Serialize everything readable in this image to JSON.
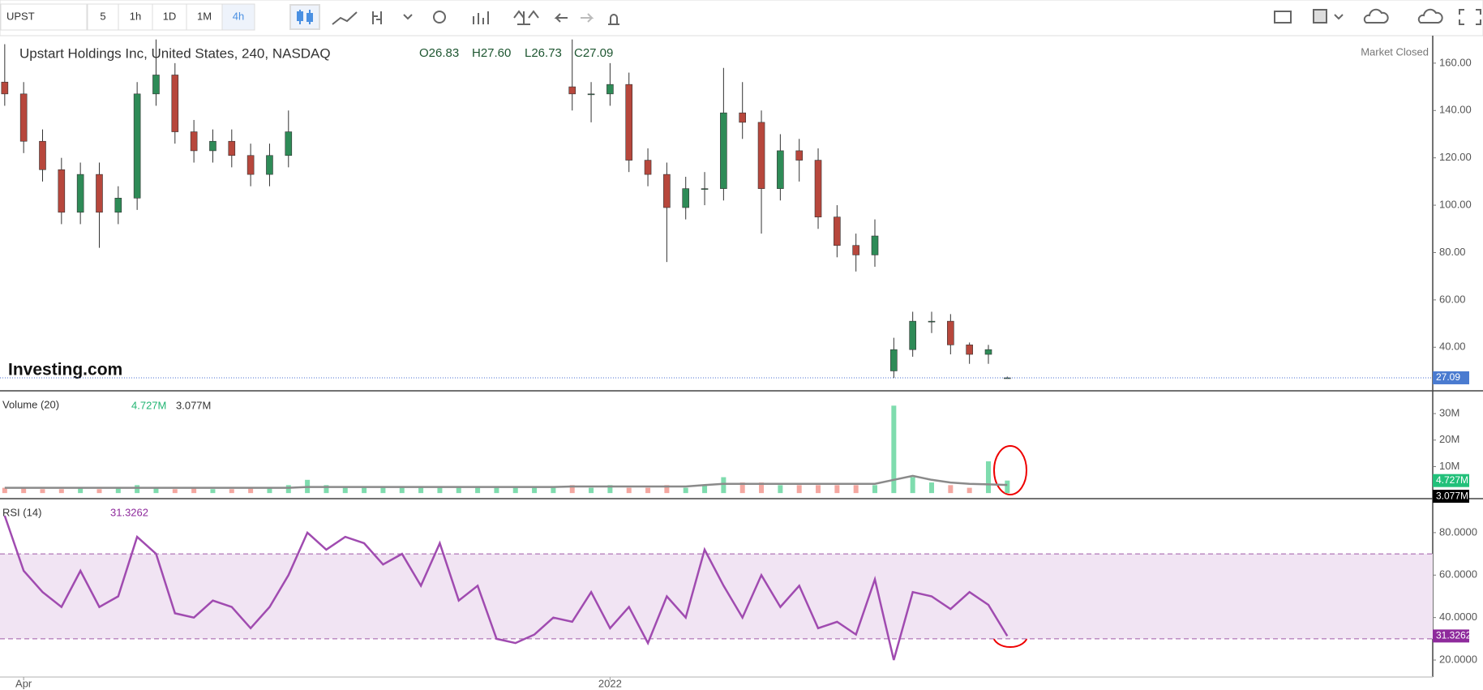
{
  "toolbar": {
    "symbol": "UPST",
    "intervals": [
      "5",
      "1h",
      "1D",
      "1M",
      "4h"
    ]
  },
  "chart_data": [
    {
      "type": "candlestick",
      "title": "Upstart Holdings Inc, United States, 240, NASDAQ",
      "status": "Market Closed",
      "watermark": "Investing.com",
      "ohlc_header": [
        "O26.83",
        "H27.60",
        "L26.73",
        "C27.09"
      ],
      "last_value_label": "27.09",
      "categories": [
        null,
        "Apr",
        null,
        null,
        null,
        null,
        null,
        null,
        null,
        null,
        null,
        null,
        null,
        null,
        null,
        null,
        null,
        null,
        null,
        null,
        null,
        null,
        null,
        null,
        null,
        null,
        null,
        null,
        null,
        null,
        null,
        null,
        "2022",
        null,
        null,
        null,
        null,
        null,
        null,
        null,
        null,
        null,
        null,
        null,
        null,
        null,
        null,
        null,
        null,
        null,
        null,
        null,
        null,
        null
      ],
      "up_color": "#2e8b57",
      "down_color": "#b7473c",
      "open": [
        152,
        147,
        127,
        115,
        97,
        113,
        97,
        103,
        147,
        155,
        131,
        123,
        127,
        121,
        113,
        121,
        null,
        null,
        null,
        null,
        null,
        null,
        null,
        null,
        null,
        null,
        null,
        null,
        null,
        null,
        150,
        147,
        147,
        151,
        119,
        113,
        99,
        107,
        107,
        139,
        135,
        107,
        123,
        119,
        95,
        83,
        79,
        30,
        39,
        51,
        51,
        41,
        37,
        26.83
      ],
      "high": [
        168,
        152,
        132,
        120,
        118,
        118,
        108,
        152,
        170,
        160,
        136,
        132,
        132,
        126,
        126,
        140,
        null,
        null,
        null,
        null,
        null,
        null,
        null,
        null,
        null,
        null,
        null,
        null,
        null,
        null,
        170,
        152,
        160,
        156,
        124,
        118,
        112,
        114,
        158,
        152,
        140,
        130,
        128,
        124,
        100,
        88,
        94,
        44,
        55,
        55,
        54,
        42,
        41,
        27.6
      ],
      "low": [
        142,
        122,
        110,
        92,
        92,
        82,
        92,
        98,
        142,
        126,
        118,
        118,
        116,
        108,
        108,
        116,
        null,
        null,
        null,
        null,
        null,
        null,
        null,
        null,
        null,
        null,
        null,
        null,
        null,
        null,
        140,
        135,
        142,
        114,
        108,
        76,
        94,
        100,
        102,
        128,
        88,
        102,
        110,
        90,
        78,
        72,
        74,
        27,
        36,
        46,
        37,
        33,
        33,
        26.73
      ],
      "close": [
        147,
        127,
        115,
        97,
        113,
        97,
        103,
        147,
        155,
        131,
        123,
        127,
        121,
        113,
        121,
        131,
        null,
        null,
        null,
        null,
        null,
        null,
        null,
        null,
        null,
        null,
        null,
        null,
        null,
        null,
        147,
        147,
        151,
        119,
        113,
        99,
        107,
        107,
        139,
        135,
        107,
        123,
        119,
        95,
        83,
        79,
        87,
        39,
        51,
        51,
        41,
        37,
        39,
        27.09
      ],
      "ylim": [
        21.6,
        171.6
      ],
      "yticks": [
        {
          "value": 40,
          "label": "40.00"
        },
        {
          "value": 60,
          "label": "60.00"
        },
        {
          "value": 80,
          "label": "80.00"
        },
        {
          "value": 100,
          "label": "100.00"
        },
        {
          "value": 120,
          "label": "120.00"
        },
        {
          "value": 140,
          "label": "140.00"
        },
        {
          "value": 160,
          "label": "160.00"
        }
      ]
    },
    {
      "type": "bar",
      "title": "Volume (20)",
      "series": [
        {
          "kind": "bar",
          "up_color": "#7fdcae",
          "down_color": "#f4a7a0",
          "flag_color": "#22c07a",
          "last_value_label": "4.727M",
          "values": [
            2,
            2,
            1.5,
            1.5,
            2,
            1.5,
            2,
            3,
            2,
            1.5,
            2,
            1.5,
            1.5,
            2,
            2,
            3,
            5,
            3,
            2,
            2,
            2,
            2,
            2,
            2,
            2,
            2,
            2,
            2,
            2,
            2,
            3,
            2,
            3,
            2,
            2,
            3,
            2,
            3,
            6,
            4,
            4,
            3,
            3,
            3,
            3,
            3,
            3,
            33,
            6,
            4,
            3,
            2,
            12,
            4.727
          ]
        },
        {
          "kind": "line",
          "color": "#8a8a8a",
          "flag_color": "#000000",
          "last_value_label": "3.077M",
          "values": [
            2,
            2,
            2,
            2,
            2,
            2,
            2,
            2,
            2,
            2,
            2,
            2,
            2,
            2,
            2,
            2,
            2.3,
            2.3,
            2.3,
            2.3,
            2.3,
            2.3,
            2.3,
            2.3,
            2.3,
            2.3,
            2.3,
            2.3,
            2.3,
            2.3,
            2.5,
            2.5,
            2.5,
            2.5,
            2.5,
            2.5,
            2.5,
            3,
            3.5,
            3.5,
            3.5,
            3.5,
            3.5,
            3.5,
            3.5,
            3.5,
            3.5,
            5,
            6.5,
            5,
            4,
            3.5,
            3.3,
            3.077
          ]
        }
      ],
      "ylim": [
        -2.1,
        38.6
      ],
      "yticks": [
        {
          "value": 10,
          "label": "10M"
        },
        {
          "value": 20,
          "label": "20M"
        },
        {
          "value": 30,
          "label": "30M"
        }
      ]
    },
    {
      "type": "line",
      "title": "RSI (14)",
      "band": [
        30,
        70
      ],
      "series": [
        {
          "kind": "line",
          "color": "#a04bb0",
          "flag_color": "#8e2a9c",
          "values": [
            88,
            62,
            52,
            45,
            62,
            45,
            50,
            78,
            70,
            42,
            40,
            48,
            45,
            35,
            45,
            60,
            80,
            72,
            78,
            75,
            65,
            70,
            55,
            75,
            48,
            55,
            30,
            28,
            32,
            40,
            38,
            52,
            35,
            45,
            28,
            50,
            40,
            72,
            55,
            40,
            60,
            45,
            55,
            35,
            38,
            32,
            58,
            20,
            52,
            50,
            44,
            52,
            46,
            31.3262
          ]
        }
      ],
      "ylim": [
        12,
        96
      ],
      "yticks": [
        {
          "value": 20,
          "label": "20.0000"
        },
        {
          "value": 40,
          "label": "40.0000"
        },
        {
          "value": 60,
          "label": "60.0000"
        },
        {
          "value": 80,
          "label": "80.0000"
        }
      ]
    }
  ]
}
